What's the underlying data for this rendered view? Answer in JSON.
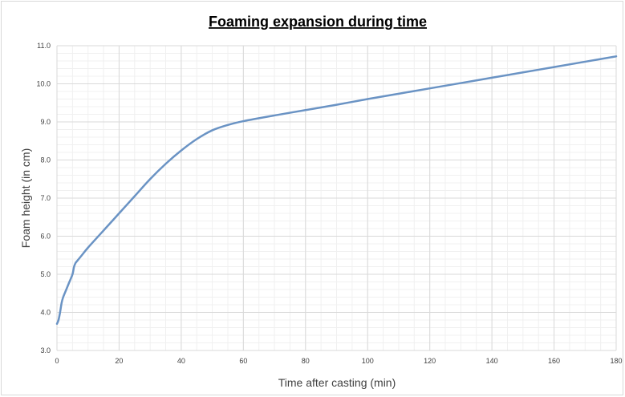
{
  "chart_data": {
    "type": "line",
    "title": "Foaming expansion during time",
    "xlabel": "Time after casting (min)",
    "ylabel": "Foam height (in cm)",
    "xlim": [
      0,
      180
    ],
    "ylim": [
      3.0,
      11.0
    ],
    "x_ticks": [
      "0",
      "20",
      "40",
      "60",
      "80",
      "100",
      "120",
      "140",
      "160",
      "180"
    ],
    "y_ticks": [
      "3.0",
      "4.0",
      "5.0",
      "6.0",
      "7.0",
      "8.0",
      "9.0",
      "10.0",
      "11.0"
    ],
    "x_minor_step": 5,
    "y_minor_step": 0.2,
    "grid": true,
    "legend": "none",
    "series": [
      {
        "color": "#6a93c4",
        "x": [
          0,
          0.5,
          1,
          1.5,
          2,
          3,
          4,
          5,
          5.5,
          6,
          6.5,
          7,
          8,
          10,
          15,
          20,
          25,
          30,
          35,
          40,
          45,
          50,
          55,
          60,
          70,
          80,
          90,
          100,
          110,
          120,
          130,
          140,
          150,
          160,
          170,
          180
        ],
        "y": [
          3.7,
          3.8,
          4.0,
          4.25,
          4.4,
          4.6,
          4.8,
          5.0,
          5.2,
          5.3,
          5.35,
          5.4,
          5.5,
          5.7,
          6.15,
          6.6,
          7.05,
          7.5,
          7.9,
          8.25,
          8.55,
          8.78,
          8.92,
          9.02,
          9.17,
          9.31,
          9.45,
          9.6,
          9.74,
          9.88,
          10.02,
          10.16,
          10.3,
          10.44,
          10.58,
          10.72
        ]
      }
    ]
  }
}
